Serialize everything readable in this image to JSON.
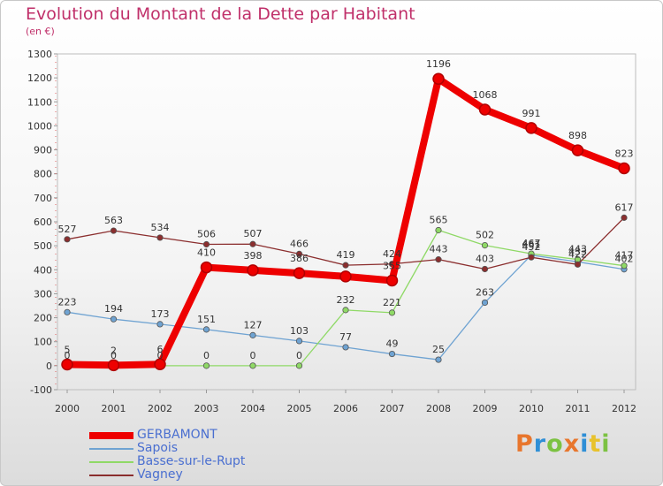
{
  "header": {
    "title": "Evolution du Montant de la Dette par Habitant",
    "subtitle": "(en €)"
  },
  "logo": {
    "text": "Proxiti",
    "colors": [
      "#e8762d",
      "#2f8fd6",
      "#7cc242",
      "#e8762d",
      "#2f8fd6",
      "#e8c22d",
      "#7cc242"
    ]
  },
  "chart_data": {
    "type": "line",
    "title": "Evolution du Montant de la Dette par Habitant",
    "ylabel": "(en €)",
    "x": [
      "2000",
      "2001",
      "2002",
      "2003",
      "2004",
      "2005",
      "2006",
      "2007",
      "2008",
      "2009",
      "2010",
      "2011",
      "2012"
    ],
    "yticks": [
      -100,
      0,
      100,
      200,
      300,
      400,
      500,
      600,
      700,
      800,
      900,
      1000,
      1100,
      1200,
      1300
    ],
    "ylim": [
      -100,
      1300
    ],
    "grid": false,
    "legend": "bottom-left",
    "series": [
      {
        "name": "GERBAMONT",
        "color": "#ee0000",
        "width": 8,
        "values": [
          5,
          2,
          6,
          410,
          398,
          386,
          372,
          355,
          1196,
          1068,
          991,
          898,
          823
        ],
        "labels": [
          "5",
          "2",
          "6",
          "410",
          "398",
          "386",
          "",
          "355",
          "1196",
          "1068",
          "991",
          "898",
          "823"
        ]
      },
      {
        "name": "Sapois",
        "color": "#6fa3d2",
        "width": 1.3,
        "values": [
          223,
          194,
          173,
          151,
          127,
          103,
          77,
          49,
          25,
          263,
          461,
          433,
          402
        ],
        "labels": [
          "223",
          "194",
          "173",
          "151",
          "127",
          "103",
          "77",
          "49",
          "25",
          "263",
          "461",
          "433",
          "402"
        ]
      },
      {
        "name": "Basse-sur-le-Rupt",
        "color": "#8fd966",
        "width": 1.3,
        "values": [
          0,
          0,
          0,
          0,
          0,
          0,
          232,
          221,
          565,
          502,
          467,
          443,
          417
        ],
        "labels": [
          "0",
          "0",
          "0",
          "0",
          "0",
          "0",
          "232",
          "221",
          "565",
          "502",
          "467",
          "443",
          "417"
        ]
      },
      {
        "name": "Vagney",
        "color": "#8b2e2e",
        "width": 1.3,
        "values": [
          527,
          563,
          534,
          506,
          507,
          466,
          419,
          424,
          443,
          403,
          452,
          422,
          617
        ],
        "labels": [
          "527",
          "563",
          "534",
          "506",
          "507",
          "466",
          "419",
          "424",
          "443",
          "403",
          "452",
          "422",
          "617"
        ]
      }
    ]
  }
}
